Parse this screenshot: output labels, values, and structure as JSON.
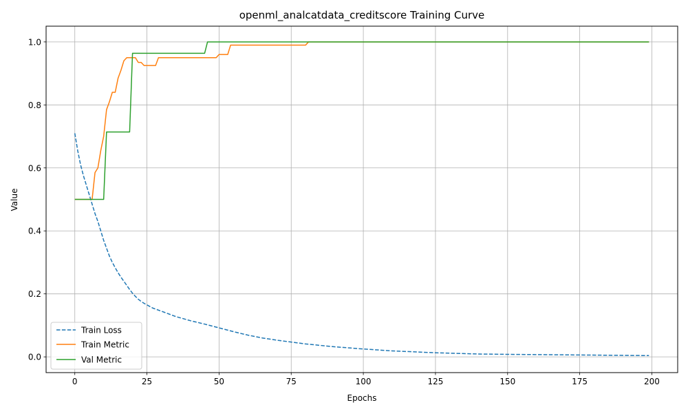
{
  "chart_data": {
    "type": "line",
    "title": "openml_analcatdata_creditscore Training Curve",
    "xlabel": "Epochs",
    "ylabel": "Value",
    "xlim": [
      -9.95,
      208.95
    ],
    "ylim": [
      -0.05,
      1.05
    ],
    "xticks": [
      0,
      25,
      50,
      75,
      100,
      125,
      150,
      175,
      200
    ],
    "yticks": [
      0.0,
      0.2,
      0.4,
      0.6,
      0.8,
      1.0
    ],
    "xtick_labels": [
      "0",
      "25",
      "50",
      "75",
      "100",
      "125",
      "150",
      "175",
      "200"
    ],
    "ytick_labels": [
      "0.0",
      "0.2",
      "0.4",
      "0.6",
      "0.8",
      "1.0"
    ],
    "grid": true,
    "legend_position": "lower-left",
    "series": [
      {
        "name": "Train Loss",
        "color": "#1f77b4",
        "dash": "dashed",
        "points": [
          [
            0,
            0.71
          ],
          [
            1,
            0.655
          ],
          [
            2,
            0.61
          ],
          [
            3,
            0.575
          ],
          [
            4,
            0.545
          ],
          [
            5,
            0.515
          ],
          [
            6,
            0.485
          ],
          [
            7,
            0.455
          ],
          [
            8,
            0.43
          ],
          [
            9,
            0.4
          ],
          [
            10,
            0.37
          ],
          [
            11,
            0.345
          ],
          [
            12,
            0.32
          ],
          [
            13,
            0.3
          ],
          [
            14,
            0.283
          ],
          [
            15,
            0.267
          ],
          [
            16,
            0.253
          ],
          [
            17,
            0.24
          ],
          [
            18,
            0.227
          ],
          [
            19,
            0.214
          ],
          [
            20,
            0.202
          ],
          [
            21,
            0.192
          ],
          [
            22,
            0.183
          ],
          [
            23,
            0.176
          ],
          [
            24,
            0.17
          ],
          [
            25,
            0.165
          ],
          [
            27,
            0.155
          ],
          [
            30,
            0.145
          ],
          [
            35,
            0.128
          ],
          [
            40,
            0.115
          ],
          [
            45,
            0.104
          ],
          [
            50,
            0.092
          ],
          [
            55,
            0.08
          ],
          [
            60,
            0.069
          ],
          [
            65,
            0.06
          ],
          [
            70,
            0.053
          ],
          [
            75,
            0.047
          ],
          [
            80,
            0.041
          ],
          [
            90,
            0.032
          ],
          [
            100,
            0.025
          ],
          [
            110,
            0.019
          ],
          [
            125,
            0.013
          ],
          [
            140,
            0.009
          ],
          [
            150,
            0.008
          ],
          [
            175,
            0.006
          ],
          [
            199,
            0.004
          ]
        ]
      },
      {
        "name": "Train Metric",
        "color": "#ff7f0e",
        "dash": "solid",
        "points": [
          [
            0,
            0.5
          ],
          [
            6,
            0.5
          ],
          [
            7,
            0.585
          ],
          [
            8,
            0.6
          ],
          [
            9,
            0.655
          ],
          [
            10,
            0.7
          ],
          [
            11,
            0.785
          ],
          [
            12,
            0.81
          ],
          [
            13,
            0.84
          ],
          [
            14,
            0.84
          ],
          [
            15,
            0.885
          ],
          [
            16,
            0.91
          ],
          [
            17,
            0.94
          ],
          [
            18,
            0.95
          ],
          [
            19,
            0.95
          ],
          [
            20,
            0.95
          ],
          [
            21,
            0.95
          ],
          [
            22,
            0.935
          ],
          [
            23,
            0.935
          ],
          [
            24,
            0.925
          ],
          [
            28,
            0.925
          ],
          [
            29,
            0.95
          ],
          [
            49,
            0.95
          ],
          [
            50,
            0.96
          ],
          [
            53,
            0.96
          ],
          [
            54,
            0.99
          ],
          [
            80,
            0.99
          ],
          [
            81,
            1.0
          ],
          [
            199,
            1.0
          ]
        ]
      },
      {
        "name": "Val Metric",
        "color": "#2ca02c",
        "dash": "solid",
        "points": [
          [
            0,
            0.5
          ],
          [
            10,
            0.5
          ],
          [
            11,
            0.714
          ],
          [
            19,
            0.714
          ],
          [
            20,
            0.964
          ],
          [
            45,
            0.964
          ],
          [
            46,
            1.0
          ],
          [
            199,
            1.0
          ]
        ]
      }
    ]
  }
}
